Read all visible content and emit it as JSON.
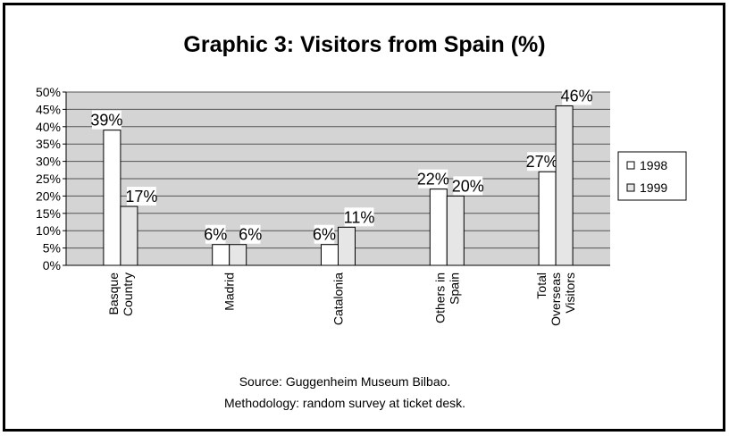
{
  "chart_data": {
    "type": "bar",
    "title": "Graphic 3: Visitors from Spain (%)",
    "categories": [
      [
        "Basque",
        "Country"
      ],
      [
        "Madrid"
      ],
      [
        "Catalonia"
      ],
      [
        "Others in",
        "Spain"
      ],
      [
        "Total",
        "Overseas",
        "Visitors"
      ]
    ],
    "series": [
      {
        "name": "1998",
        "values": [
          39,
          6,
          6,
          22,
          27
        ]
      },
      {
        "name": "1999",
        "values": [
          17,
          6,
          11,
          20,
          46
        ]
      }
    ],
    "data_labels": [
      [
        "39%",
        "6%",
        "6%",
        "22%",
        "27%"
      ],
      [
        "17%",
        "6%",
        "11%",
        "20%",
        "46%"
      ]
    ],
    "yticks": [
      "0%",
      "5%",
      "10%",
      "15%",
      "20%",
      "25%",
      "30%",
      "35%",
      "40%",
      "45%",
      "50%"
    ],
    "ylim": [
      0,
      50
    ],
    "grid": true,
    "legend_position": "right",
    "colors": {
      "plot_bg": "#d4d4d4",
      "bar_1998": "#ffffff",
      "bar_1999": "#e6e6e6",
      "grid": "#555555",
      "border": "#000000"
    },
    "footnotes": [
      "Source: Guggenheim Museum Bilbao.",
      "Methodology: random survey at ticket desk."
    ]
  }
}
